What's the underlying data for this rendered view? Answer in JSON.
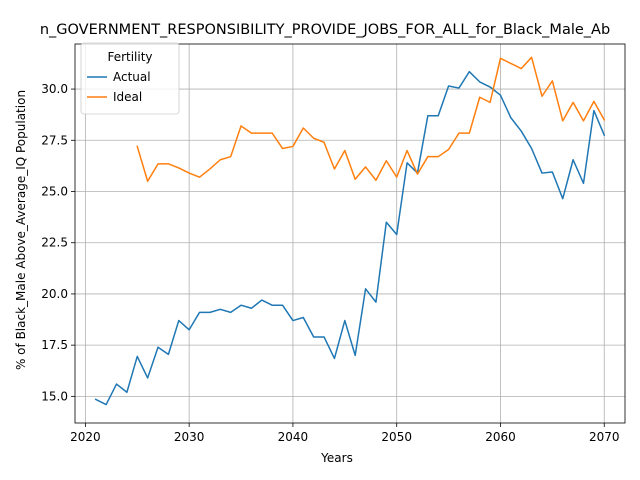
{
  "chart_data": {
    "type": "line",
    "title": "n_GOVERNMENT_RESPONSIBILITY_PROVIDE_JOBS_FOR_ALL_for_Black_Male_Ab",
    "xlabel": "Years",
    "ylabel": "% of Black_Male Above_Average_IQ Population",
    "xlim": [
      2019,
      2072
    ],
    "ylim": [
      13.7,
      32.2
    ],
    "x_ticks": [
      2020,
      2030,
      2040,
      2050,
      2060,
      2070
    ],
    "y_ticks": [
      15.0,
      17.5,
      20.0,
      22.5,
      25.0,
      27.5,
      30.0
    ],
    "y_tick_labels": [
      "15.0",
      "17.5",
      "20.0",
      "22.5",
      "25.0",
      "27.5",
      "30.0"
    ],
    "x_tick_labels": [
      "2020",
      "2030",
      "2040",
      "2050",
      "2060",
      "2070"
    ],
    "grid": true,
    "legend": {
      "title": "Fertility",
      "placement": "top-left"
    },
    "series": [
      {
        "name": "Actual",
        "color": "#1f77b4",
        "x": [
          2021,
          2022,
          2023,
          2024,
          2025,
          2026,
          2027,
          2028,
          2029,
          2030,
          2031,
          2032,
          2033,
          2034,
          2035,
          2036,
          2037,
          2038,
          2039,
          2040,
          2041,
          2042,
          2043,
          2044,
          2045,
          2046,
          2047,
          2048,
          2049,
          2050,
          2051,
          2052,
          2053,
          2054,
          2055,
          2056,
          2057,
          2058,
          2059,
          2060,
          2061,
          2062,
          2063,
          2064,
          2065,
          2066,
          2067,
          2068,
          2069,
          2070
        ],
        "values": [
          14.85,
          14.6,
          15.6,
          15.2,
          16.95,
          15.9,
          17.4,
          17.05,
          18.7,
          18.25,
          19.1,
          19.1,
          19.25,
          19.1,
          19.45,
          19.3,
          19.7,
          19.45,
          19.45,
          18.7,
          18.85,
          17.9,
          17.9,
          16.85,
          18.7,
          17.0,
          20.25,
          19.6,
          23.5,
          22.9,
          26.4,
          25.9,
          28.7,
          28.7,
          30.15,
          30.05,
          30.85,
          30.35,
          30.1,
          29.7,
          28.6,
          27.95,
          27.1,
          25.9,
          25.95,
          24.65,
          26.55,
          25.4,
          28.95,
          27.75
        ]
      },
      {
        "name": "Ideal",
        "color": "#ff7f0e",
        "x": [
          2025,
          2026,
          2027,
          2028,
          2029,
          2030,
          2031,
          2032,
          2033,
          2034,
          2035,
          2036,
          2037,
          2038,
          2039,
          2040,
          2041,
          2042,
          2043,
          2044,
          2045,
          2046,
          2047,
          2048,
          2049,
          2050,
          2051,
          2052,
          2053,
          2054,
          2055,
          2056,
          2057,
          2058,
          2059,
          2060,
          2061,
          2062,
          2063,
          2064,
          2065,
          2066,
          2067,
          2068,
          2069,
          2070
        ],
        "values": [
          27.2,
          25.5,
          26.35,
          26.35,
          26.15,
          25.9,
          25.7,
          26.1,
          26.55,
          26.7,
          28.2,
          27.85,
          27.85,
          27.85,
          27.1,
          27.2,
          28.1,
          27.6,
          27.4,
          26.1,
          27.0,
          25.6,
          26.2,
          25.55,
          26.5,
          25.7,
          27.0,
          25.85,
          26.7,
          26.7,
          27.05,
          27.85,
          27.85,
          29.6,
          29.35,
          31.5,
          31.25,
          31.0,
          31.55,
          29.65,
          30.4,
          28.45,
          29.35,
          28.45,
          29.4,
          28.5
        ]
      }
    ]
  }
}
